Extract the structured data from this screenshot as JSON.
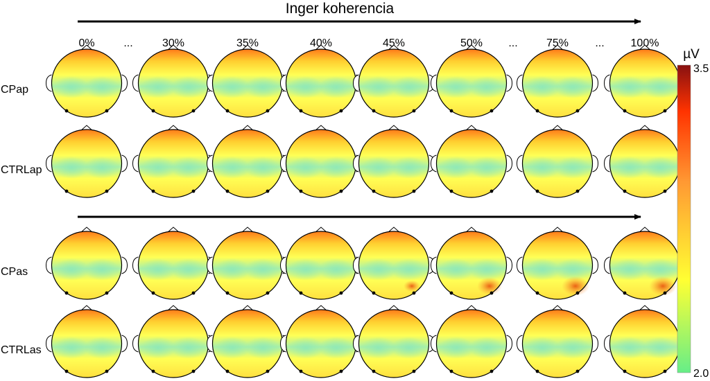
{
  "title": "Inger koherencia",
  "columns": [
    "0%",
    "...",
    "30%",
    "35%",
    "40%",
    "45%",
    "50%",
    "...",
    "75%",
    "...",
    "100%"
  ],
  "rows": [
    "CPap",
    "CTRLap",
    "CPas",
    "CTRLas"
  ],
  "colorbar": {
    "unit": "µV",
    "max_label": "3.5",
    "min_label": "2.0",
    "min": 2.0,
    "max": 3.5,
    "colors": [
      "#66ee88",
      "#ffff33",
      "#ff9933",
      "#ff3300",
      "#881111"
    ]
  },
  "map_colors": {
    "top_rim": "#ff7a1a",
    "upper": "#ffd030",
    "mid": "#ffff55",
    "low": "#8ee8b8",
    "hot_spot": "#e85a10"
  }
}
